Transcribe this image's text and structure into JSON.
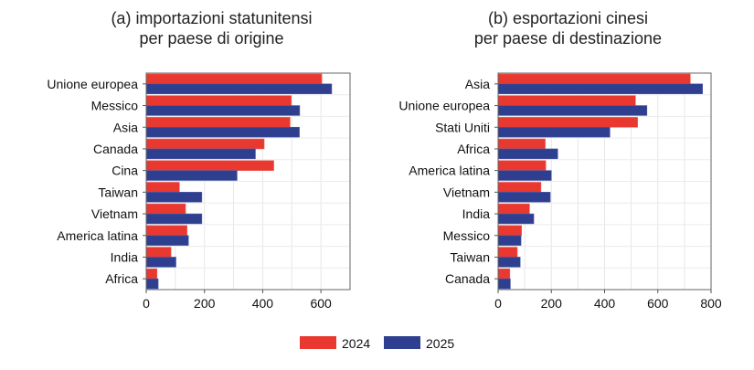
{
  "chart_data": [
    {
      "type": "bar",
      "orientation": "horizontal",
      "title": [
        "(a) importazioni statunitensi",
        "per paese di origine"
      ],
      "categories": [
        "Unione europea",
        "Messico",
        "Asia",
        "Canada",
        "Cina",
        "Taiwan",
        "Vietnam",
        "America latina",
        "India",
        "Africa"
      ],
      "series": [
        {
          "name": "2024",
          "color": "#e8382f",
          "values": [
            603,
            498,
            494,
            405,
            438,
            114,
            135,
            140,
            85,
            37
          ]
        },
        {
          "name": "2025",
          "color": "#2e3f8f",
          "values": [
            637,
            527,
            526,
            375,
            312,
            191,
            191,
            145,
            102,
            41
          ]
        }
      ],
      "xlim": [
        0,
        700
      ],
      "xticks": [
        0,
        200,
        400,
        600
      ],
      "grid": true
    },
    {
      "type": "bar",
      "orientation": "horizontal",
      "title": [
        "(b) esportazioni cinesi",
        "per paese di destinazione"
      ],
      "categories": [
        "Asia",
        "Unione europea",
        "Stati Uniti",
        "Africa",
        "America latina",
        "Vietnam",
        "India",
        "Messico",
        "Taiwan",
        "Canada"
      ],
      "series": [
        {
          "name": "2024",
          "color": "#e8382f",
          "values": [
            722,
            516,
            524,
            177,
            179,
            161,
            118,
            88,
            72,
            44
          ]
        },
        {
          "name": "2025",
          "color": "#2e3f8f",
          "values": [
            768,
            559,
            420,
            224,
            200,
            196,
            134,
            86,
            83,
            46
          ]
        }
      ],
      "xlim": [
        0,
        800
      ],
      "xticks": [
        0,
        200,
        400,
        600,
        800
      ],
      "grid": true
    }
  ],
  "legend": {
    "placement": "bottom",
    "items": [
      "2024",
      "2025"
    ]
  }
}
